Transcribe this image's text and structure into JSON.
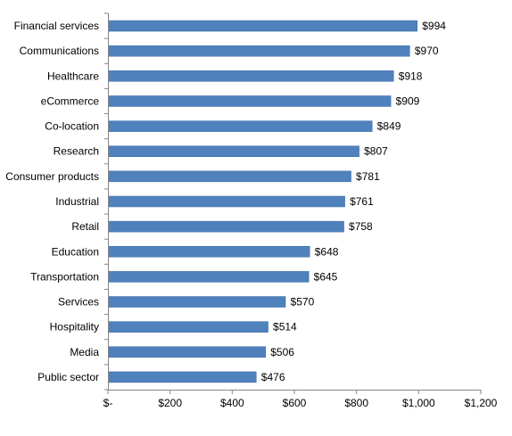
{
  "chart_data": {
    "type": "bar",
    "orientation": "horizontal",
    "categories": [
      "Financial services",
      "Communications",
      "Healthcare",
      "eCommerce",
      "Co-location",
      "Research",
      "Consumer products",
      "Industrial",
      "Retail",
      "Education",
      "Transportation",
      "Services",
      "Hospitality",
      "Media",
      "Public sector"
    ],
    "values": [
      994,
      970,
      918,
      909,
      849,
      807,
      781,
      761,
      758,
      648,
      645,
      570,
      514,
      506,
      476
    ],
    "data_labels": [
      "$994",
      "$970",
      "$918",
      "$909",
      "$849",
      "$807",
      "$781",
      "$761",
      "$758",
      "$648",
      "$645",
      "$570",
      "$514",
      "$506",
      "$476"
    ],
    "x_ticks": [
      0,
      200,
      400,
      600,
      800,
      1000,
      1200
    ],
    "x_tick_labels": [
      "$-",
      "$200",
      "$400",
      "$600",
      "$800",
      "$1,000",
      "$1,200"
    ],
    "xlim": [
      0,
      1200
    ],
    "grid": false,
    "legend": "none",
    "bar_color": "#4F81BD",
    "bar_edge_color": "#3A6AA8",
    "axis_color": "#868686"
  }
}
